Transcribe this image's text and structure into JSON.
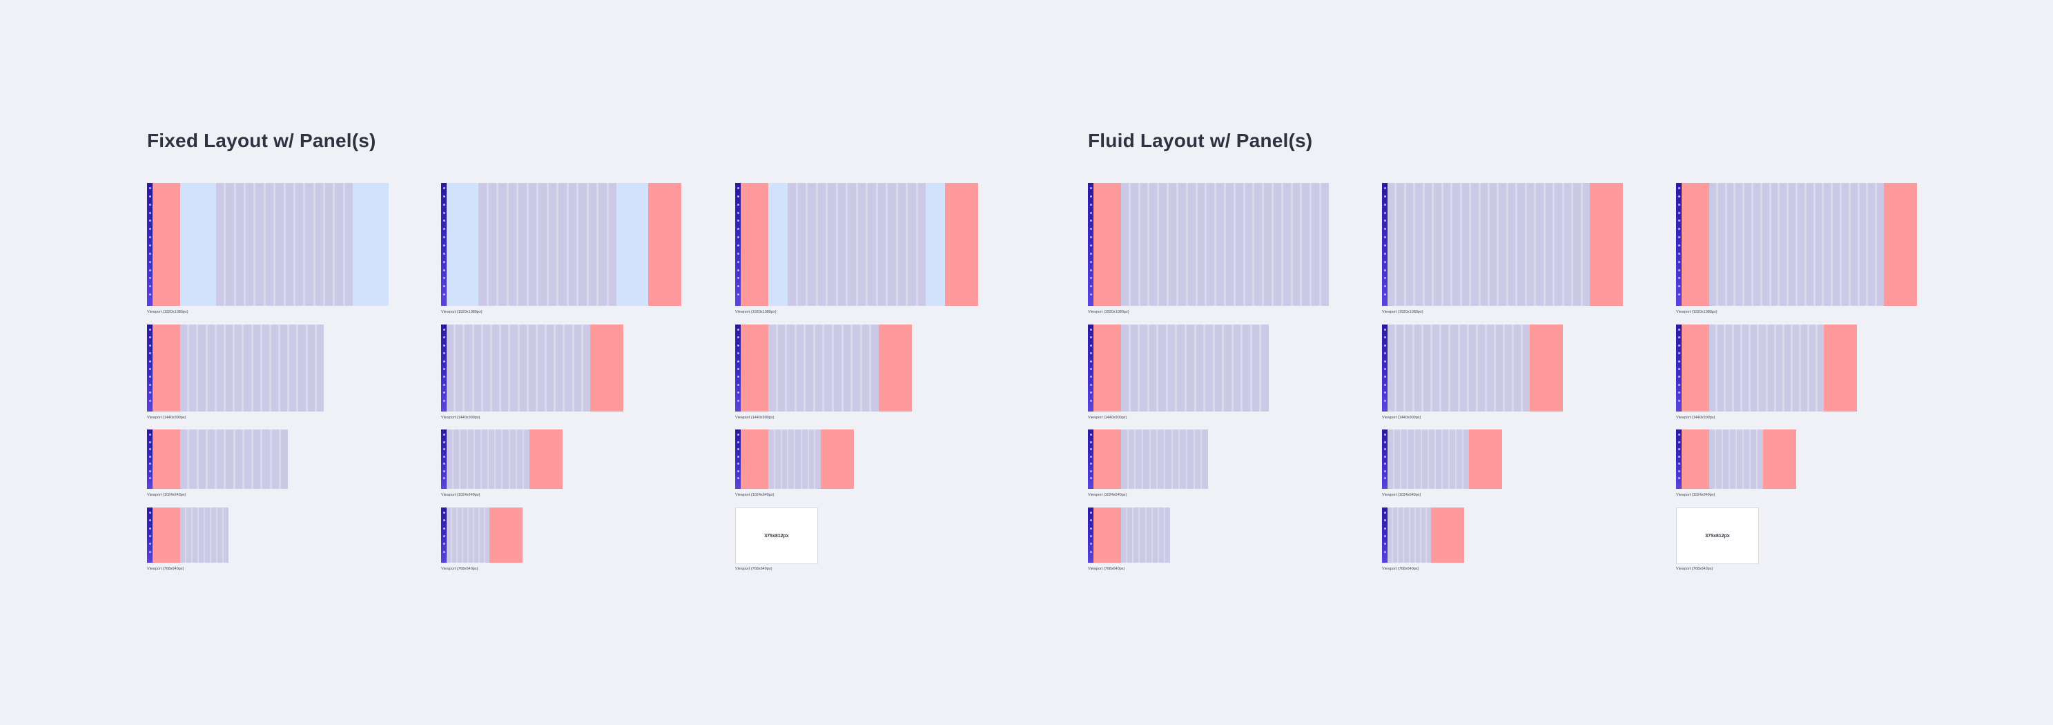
{
  "sections": [
    {
      "id": "fixed",
      "title": "Fixed Layout w/ Panel(s)"
    },
    {
      "id": "fluid",
      "title": "Fluid Layout w/ Panel(s)"
    }
  ],
  "captions": {
    "xl": "Viewport (1920x1080px)",
    "lg": "Viewport (1440x900px)",
    "md": "Viewport (1024x640px)",
    "sm": "Viewport (768x640px)"
  },
  "mobile_label": "375x812px",
  "colors": {
    "background": "#f0f1f6",
    "sidebar_nav": "#2a1a9e",
    "panel": "#ff9a9c",
    "margin_area": "#d2e2fd",
    "grid_column": "#ccc9e6"
  }
}
